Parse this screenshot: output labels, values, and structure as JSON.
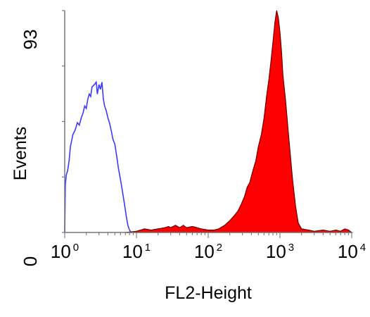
{
  "chart_data": {
    "type": "area",
    "xlabel": "FL2-Height",
    "ylabel": "Events",
    "x_scale": "log",
    "xlim": [
      1,
      10000
    ],
    "ylim": [
      0,
      93
    ],
    "x_tick_labels": [
      {
        "base": "10",
        "exp": "0"
      },
      {
        "base": "10",
        "exp": "1"
      },
      {
        "base": "10",
        "exp": "2"
      },
      {
        "base": "10",
        "exp": "3"
      },
      {
        "base": "10",
        "exp": "4"
      }
    ],
    "y_tick_labels": [
      "0",
      "93"
    ],
    "grid": false,
    "legend": "none",
    "series": [
      {
        "style": "outline",
        "color": "#3b3bff",
        "points": [
          [
            1.0,
            0
          ],
          [
            1.02,
            20
          ],
          [
            1.05,
            24
          ],
          [
            1.1,
            26
          ],
          [
            1.15,
            30
          ],
          [
            1.2,
            36
          ],
          [
            1.3,
            41
          ],
          [
            1.4,
            43
          ],
          [
            1.5,
            46
          ],
          [
            1.6,
            45
          ],
          [
            1.7,
            48
          ],
          [
            1.8,
            50
          ],
          [
            1.9,
            53
          ],
          [
            2.0,
            52
          ],
          [
            2.1,
            56
          ],
          [
            2.2,
            58
          ],
          [
            2.3,
            57
          ],
          [
            2.4,
            61
          ],
          [
            2.6,
            62
          ],
          [
            2.75,
            63
          ],
          [
            2.85,
            58
          ],
          [
            3.0,
            62
          ],
          [
            3.15,
            60
          ],
          [
            3.3,
            63
          ],
          [
            3.45,
            56
          ],
          [
            3.6,
            53
          ],
          [
            3.8,
            51
          ],
          [
            4.0,
            48
          ],
          [
            4.2,
            46
          ],
          [
            4.5,
            42
          ],
          [
            4.7,
            39
          ],
          [
            5.0,
            37
          ],
          [
            5.3,
            32
          ],
          [
            5.6,
            27
          ],
          [
            6.0,
            22
          ],
          [
            6.4,
            17
          ],
          [
            6.8,
            12
          ],
          [
            7.2,
            7
          ],
          [
            7.6,
            3
          ],
          [
            8.0,
            1
          ],
          [
            8.5,
            0
          ]
        ]
      },
      {
        "style": "filled",
        "color": "#ff0000",
        "points": [
          [
            7.0,
            0
          ],
          [
            10,
            0.5
          ],
          [
            13,
            1.5
          ],
          [
            16,
            1
          ],
          [
            20,
            1.5
          ],
          [
            25,
            2
          ],
          [
            28,
            2.5
          ],
          [
            30,
            2
          ],
          [
            35,
            3
          ],
          [
            40,
            2
          ],
          [
            45,
            3
          ],
          [
            50,
            2
          ],
          [
            60,
            2.5
          ],
          [
            70,
            2
          ],
          [
            80,
            1.5
          ],
          [
            100,
            1
          ],
          [
            120,
            1
          ],
          [
            140,
            1.5
          ],
          [
            170,
            3
          ],
          [
            200,
            5
          ],
          [
            230,
            7
          ],
          [
            260,
            9
          ],
          [
            290,
            12
          ],
          [
            320,
            15
          ],
          [
            350,
            19
          ],
          [
            380,
            21
          ],
          [
            420,
            26
          ],
          [
            460,
            30
          ],
          [
            500,
            36
          ],
          [
            550,
            41
          ],
          [
            600,
            48
          ],
          [
            650,
            57
          ],
          [
            700,
            64
          ],
          [
            750,
            72
          ],
          [
            800,
            80
          ],
          [
            850,
            88
          ],
          [
            900,
            93
          ],
          [
            950,
            90
          ],
          [
            1000,
            84
          ],
          [
            1050,
            76
          ],
          [
            1100,
            66
          ],
          [
            1200,
            55
          ],
          [
            1300,
            43
          ],
          [
            1400,
            32
          ],
          [
            1500,
            22
          ],
          [
            1650,
            11
          ],
          [
            1800,
            4
          ],
          [
            2000,
            1.5
          ],
          [
            2500,
            1
          ],
          [
            3000,
            0.5
          ],
          [
            4000,
            1
          ],
          [
            5000,
            0.5
          ],
          [
            6000,
            1
          ],
          [
            7000,
            0.5
          ],
          [
            8000,
            1.5
          ],
          [
            9000,
            1
          ],
          [
            10000,
            0
          ]
        ]
      }
    ]
  }
}
